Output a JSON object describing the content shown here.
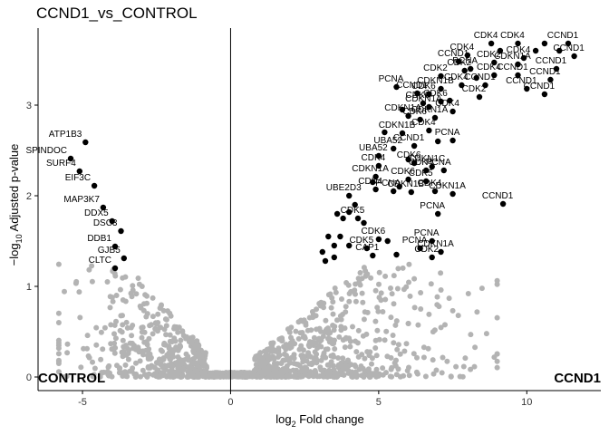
{
  "chart_data": {
    "type": "scatter",
    "title": "CCND1_vs_CONTROL",
    "xlabel_prefix": "log",
    "xlabel_sub": "2",
    "xlabel_suffix": " Fold change",
    "ylabel_prefix": "−log",
    "ylabel_sub": "10",
    "ylabel_suffix": " Adjusted p-value",
    "xlim": [
      -6.5,
      12.5
    ],
    "ylim": [
      -0.15,
      3.85
    ],
    "x_ticks": [
      -5,
      0,
      5,
      10
    ],
    "y_ticks": [
      0,
      1,
      2,
      3
    ],
    "x_tick_labels": [
      "-5",
      "0",
      "5",
      "10"
    ],
    "y_tick_labels": [
      "0",
      "1",
      "2",
      "3"
    ],
    "grid": false,
    "vline": 0,
    "group_labels": {
      "left": "CONTROL",
      "right": "CCND1"
    },
    "colors": {
      "significant": "#000000",
      "not_significant": "#b3b3b3",
      "axis": "#000000"
    },
    "significant_points": [
      {
        "x": -4.9,
        "y": 2.59,
        "label": "ATP1B3"
      },
      {
        "x": -5.4,
        "y": 2.41,
        "label": "SPINDOC"
      },
      {
        "x": -5.1,
        "y": 2.27,
        "label": "SURF4"
      },
      {
        "x": -4.6,
        "y": 2.11,
        "label": "EIF3C"
      },
      {
        "x": -4.3,
        "y": 1.87,
        "label": "MAP3K7"
      },
      {
        "x": -4.0,
        "y": 1.72,
        "label": "DDX5"
      },
      {
        "x": -3.7,
        "y": 1.61,
        "label": "DSC3"
      },
      {
        "x": -3.9,
        "y": 1.44,
        "label": "DDB1"
      },
      {
        "x": -3.6,
        "y": 1.31,
        "label": "GJB5"
      },
      {
        "x": -3.9,
        "y": 1.2,
        "label": "CLTC"
      },
      {
        "x": 8.0,
        "y": 3.55,
        "label": "CDK4"
      },
      {
        "x": 8.8,
        "y": 3.68,
        "label": "CDK4"
      },
      {
        "x": 9.7,
        "y": 3.68,
        "label": "CDK4"
      },
      {
        "x": 11.4,
        "y": 3.68,
        "label": "CCND1"
      },
      {
        "x": 11.6,
        "y": 3.54,
        "label": "CCND1"
      },
      {
        "x": 8.9,
        "y": 3.47,
        "label": "CDK2"
      },
      {
        "x": 9.9,
        "y": 3.52,
        "label": "CDK4"
      },
      {
        "x": 8.1,
        "y": 3.4,
        "label": "PCNA"
      },
      {
        "x": 9.7,
        "y": 3.45,
        "label": "CDKN1A"
      },
      {
        "x": 11.0,
        "y": 3.4,
        "label": "CCND1"
      },
      {
        "x": 10.8,
        "y": 3.28,
        "label": "CCND1"
      },
      {
        "x": 8.9,
        "y": 3.33,
        "label": "CDK4"
      },
      {
        "x": 9.7,
        "y": 3.33,
        "label": "CCND1"
      },
      {
        "x": 10.0,
        "y": 3.18,
        "label": "CCND1"
      },
      {
        "x": 10.6,
        "y": 3.12,
        "label": "CCND1"
      },
      {
        "x": 7.7,
        "y": 3.48,
        "label": "CCND1"
      },
      {
        "x": 7.1,
        "y": 3.32,
        "label": "CDK2"
      },
      {
        "x": 7.9,
        "y": 3.38,
        "label": "CDK2"
      },
      {
        "x": 7.8,
        "y": 3.22,
        "label": "CDK4"
      },
      {
        "x": 8.6,
        "y": 3.22,
        "label": "CCND1"
      },
      {
        "x": 8.4,
        "y": 3.09,
        "label": "CDK2"
      },
      {
        "x": 7.1,
        "y": 3.18,
        "label": "CDKN1B"
      },
      {
        "x": 5.6,
        "y": 3.2,
        "label": "PCNA"
      },
      {
        "x": 6.3,
        "y": 3.13,
        "label": "CCND1"
      },
      {
        "x": 6.7,
        "y": 3.12,
        "label": "CDK6"
      },
      {
        "x": 7.1,
        "y": 3.04,
        "label": "CDK6"
      },
      {
        "x": 6.5,
        "y": 3.02,
        "label": "CDK6"
      },
      {
        "x": 6.7,
        "y": 2.98,
        "label": "CDKN1A"
      },
      {
        "x": 7.5,
        "y": 2.93,
        "label": "CDK4"
      },
      {
        "x": 6.0,
        "y": 2.88,
        "label": "CDKN1A"
      },
      {
        "x": 6.4,
        "y": 2.84,
        "label": "CDK6"
      },
      {
        "x": 6.9,
        "y": 2.86,
        "label": "CDKN1A"
      },
      {
        "x": 5.8,
        "y": 2.69,
        "label": "CDKN1B"
      },
      {
        "x": 6.7,
        "y": 2.72,
        "label": "CDK4"
      },
      {
        "x": 7.5,
        "y": 2.61,
        "label": "PCNA"
      },
      {
        "x": 6.2,
        "y": 2.55,
        "label": "CCND1"
      },
      {
        "x": 5.5,
        "y": 2.52,
        "label": "UBA52"
      },
      {
        "x": 5.0,
        "y": 2.44,
        "label": "UBA52"
      },
      {
        "x": 6.2,
        "y": 2.36,
        "label": "CDK6"
      },
      {
        "x": 6.8,
        "y": 2.32,
        "label": "CDKN1C"
      },
      {
        "x": 5.0,
        "y": 2.33,
        "label": "CDK4"
      },
      {
        "x": 6.6,
        "y": 2.28,
        "label": "CDK4"
      },
      {
        "x": 7.2,
        "y": 2.28,
        "label": "PCNA"
      },
      {
        "x": 4.9,
        "y": 2.21,
        "label": "CDKN1A"
      },
      {
        "x": 6.0,
        "y": 2.18,
        "label": "CDK6"
      },
      {
        "x": 6.6,
        "y": 2.16,
        "label": "CDK5"
      },
      {
        "x": 4.9,
        "y": 2.07,
        "label": "CDK4"
      },
      {
        "x": 5.5,
        "y": 2.05,
        "label": "PCNA"
      },
      {
        "x": 6.9,
        "y": 2.05,
        "label": "CDK4"
      },
      {
        "x": 4.0,
        "y": 2.0,
        "label": "UBE2D3"
      },
      {
        "x": 6.1,
        "y": 2.04,
        "label": "CDKN1B"
      },
      {
        "x": 7.5,
        "y": 2.02,
        "label": "CDKN1A"
      },
      {
        "x": 9.2,
        "y": 1.91,
        "label": "CCND1"
      },
      {
        "x": 7.0,
        "y": 1.8,
        "label": "PCNA"
      },
      {
        "x": 4.3,
        "y": 1.75,
        "label": "CDK5"
      },
      {
        "x": 5.0,
        "y": 1.52,
        "label": "CDK6"
      },
      {
        "x": 6.8,
        "y": 1.5,
        "label": "PCNA"
      },
      {
        "x": 4.6,
        "y": 1.42,
        "label": "CDK5"
      },
      {
        "x": 6.4,
        "y": 1.42,
        "label": "PCNA"
      },
      {
        "x": 7.1,
        "y": 1.38,
        "label": "CDKN1A"
      },
      {
        "x": 4.8,
        "y": 1.34,
        "label": "CAP1"
      },
      {
        "x": 6.8,
        "y": 1.32,
        "label": "CDK2"
      },
      {
        "x": 3.6,
        "y": 1.8,
        "label": ""
      },
      {
        "x": 3.8,
        "y": 1.75,
        "label": ""
      },
      {
        "x": 4.0,
        "y": 1.82,
        "label": ""
      },
      {
        "x": 4.2,
        "y": 1.9,
        "label": ""
      },
      {
        "x": 4.5,
        "y": 1.7,
        "label": ""
      },
      {
        "x": 3.3,
        "y": 1.55,
        "label": ""
      },
      {
        "x": 3.5,
        "y": 1.45,
        "label": ""
      },
      {
        "x": 3.7,
        "y": 1.55,
        "label": ""
      },
      {
        "x": 3.1,
        "y": 1.38,
        "label": ""
      },
      {
        "x": 3.5,
        "y": 1.32,
        "label": ""
      },
      {
        "x": 4.0,
        "y": 1.45,
        "label": ""
      },
      {
        "x": 3.2,
        "y": 1.28,
        "label": ""
      },
      {
        "x": 5.3,
        "y": 1.5,
        "label": ""
      },
      {
        "x": 5.6,
        "y": 1.35,
        "label": ""
      },
      {
        "x": 5.2,
        "y": 2.7,
        "label": ""
      },
      {
        "x": 5.8,
        "y": 2.95,
        "label": ""
      },
      {
        "x": 7.4,
        "y": 3.05,
        "label": ""
      },
      {
        "x": 7.0,
        "y": 2.6,
        "label": ""
      },
      {
        "x": 8.3,
        "y": 3.3,
        "label": ""
      },
      {
        "x": 9.1,
        "y": 3.6,
        "label": ""
      },
      {
        "x": 10.3,
        "y": 3.6,
        "label": ""
      },
      {
        "x": 10.6,
        "y": 3.68,
        "label": ""
      },
      {
        "x": 11.1,
        "y": 3.6,
        "label": ""
      },
      {
        "x": 6.0,
        "y": 2.4,
        "label": ""
      },
      {
        "x": 5.7,
        "y": 2.1,
        "label": ""
      },
      {
        "x": 4.8,
        "y": 2.15,
        "label": ""
      }
    ]
  }
}
